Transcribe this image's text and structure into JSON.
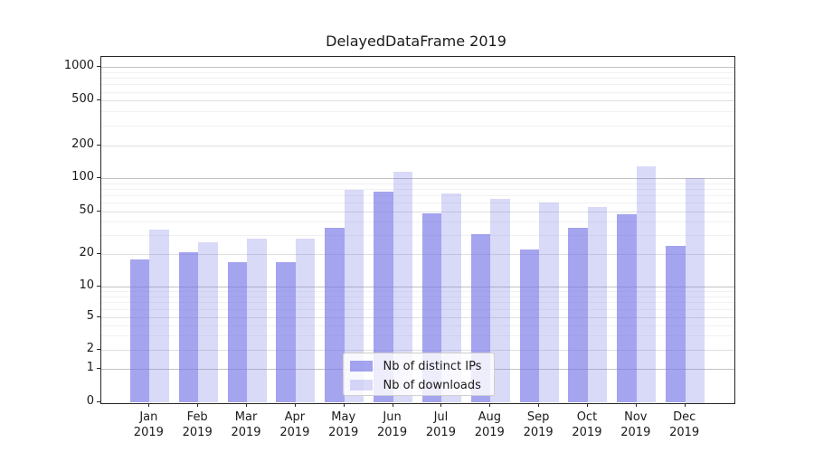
{
  "chart_data": {
    "type": "bar",
    "title": "DelayedDataFrame 2019",
    "categories": [
      "Jan",
      "Feb",
      "Mar",
      "Apr",
      "May",
      "Jun",
      "Jul",
      "Aug",
      "Sep",
      "Oct",
      "Nov",
      "Dec"
    ],
    "x_year_label": "2019",
    "series": [
      {
        "name": "Nb of distinct IPs",
        "values": [
          18,
          21,
          17,
          17,
          35,
          75,
          48,
          31,
          22,
          35,
          47,
          24
        ]
      },
      {
        "name": "Nb of downloads",
        "values": [
          34,
          26,
          28,
          28,
          78,
          114,
          72,
          65,
          60,
          55,
          127,
          100
        ]
      }
    ],
    "y_scale": "symlog",
    "ylim": [
      0,
      1240
    ],
    "y_ticks": [
      0,
      1,
      2,
      5,
      10,
      20,
      50,
      100,
      200,
      500,
      1000
    ],
    "y_minor_ticks": [
      3,
      4,
      6,
      7,
      8,
      9,
      30,
      40,
      60,
      70,
      80,
      90,
      300,
      400,
      600,
      700,
      800,
      900
    ],
    "y_decade_ticks": [
      1,
      10,
      100,
      1000
    ],
    "grid": true,
    "legend_position": "lower center",
    "colors": {
      "bar_base": "#7373e6",
      "bar_rgba_distinct_ips": "rgba(115,115,230,0.65)",
      "bar_rgba_downloads": "rgba(115,115,230,0.27)",
      "grid_decade": "#c2c2c2",
      "grid_major": "#e0e0e0",
      "grid_minor": "#f1f1f1",
      "spine": "#262626",
      "text": "#1a1a1a",
      "legend_border": "#cfcfcf"
    }
  }
}
